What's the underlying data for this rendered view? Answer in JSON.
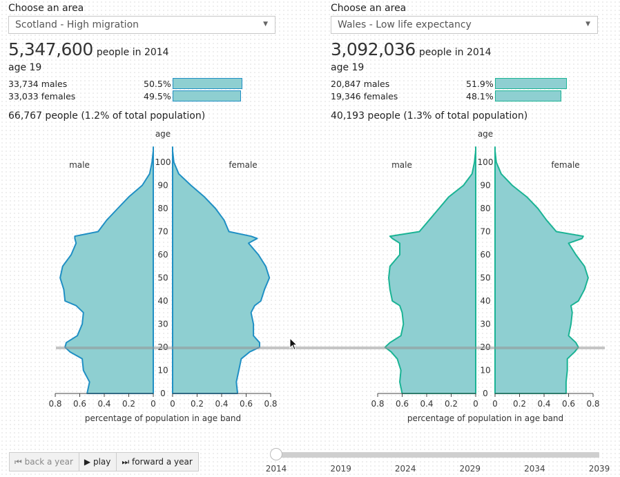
{
  "left": {
    "choose_label": "Choose an area",
    "area": "Scotland - High migration",
    "population": "5,347,600",
    "population_suffix": "people in 2014",
    "age_label": "age 19",
    "males": {
      "count": "33,734 males",
      "pct": "50.5%",
      "share": 0.505
    },
    "females": {
      "count": "33,033 females",
      "pct": "49.5%",
      "share": 0.495
    },
    "total": "66,767 people (1.2% of total population)",
    "color": "#1f8fc4"
  },
  "right": {
    "choose_label": "Choose an area",
    "area": "Wales - Low life expectancy",
    "population": "3,092,036",
    "population_suffix": "people in 2014",
    "age_label": "age 19",
    "males": {
      "count": "20,847 males",
      "pct": "51.9%",
      "share": 0.519
    },
    "females": {
      "count": "19,346 females",
      "pct": "48.1%",
      "share": 0.481
    },
    "total": "40,193 people (1.3% of total population)",
    "color": "#1ab394"
  },
  "colors": {
    "fill": "#8ecfd1",
    "highlight": "#9a9a9a"
  },
  "controls": {
    "back": "back a year",
    "play": "play",
    "forward": "forward a year"
  },
  "timeline": {
    "years": [
      "2014",
      "2019",
      "2024",
      "2029",
      "2034",
      "2039"
    ],
    "current": "2014"
  },
  "chart_data": [
    {
      "type": "area",
      "title": "Scotland - High migration",
      "ylabel": "age",
      "xlabel": "percentage of population in age band",
      "left_label": "male",
      "right_label": "female",
      "xlim": [
        0,
        0.8
      ],
      "x_ticks": [
        "0",
        "0.2",
        "0.4",
        "0.6",
        "0.8"
      ],
      "ylim": [
        0,
        105
      ],
      "y_ticks": [
        "0",
        "10",
        "20",
        "30",
        "40",
        "50",
        "60",
        "70",
        "80",
        "90",
        "100"
      ],
      "highlight_age": 19,
      "ages": [
        0,
        5,
        10,
        15,
        18,
        20,
        22,
        25,
        30,
        35,
        38,
        40,
        45,
        50,
        55,
        60,
        65,
        67,
        68,
        70,
        75,
        80,
        85,
        90,
        95,
        100,
        105
      ],
      "series": [
        {
          "name": "male",
          "values": [
            0.54,
            0.52,
            0.57,
            0.58,
            0.68,
            0.72,
            0.71,
            0.62,
            0.58,
            0.57,
            0.63,
            0.72,
            0.73,
            0.76,
            0.74,
            0.67,
            0.63,
            0.64,
            0.64,
            0.45,
            0.38,
            0.29,
            0.2,
            0.09,
            0.03,
            0.01,
            0
          ]
        },
        {
          "name": "female",
          "values": [
            0.53,
            0.52,
            0.54,
            0.56,
            0.63,
            0.71,
            0.71,
            0.66,
            0.66,
            0.64,
            0.67,
            0.72,
            0.75,
            0.79,
            0.76,
            0.7,
            0.62,
            0.69,
            0.64,
            0.46,
            0.42,
            0.35,
            0.26,
            0.15,
            0.05,
            0.01,
            0
          ]
        }
      ]
    },
    {
      "type": "area",
      "title": "Wales - Low life expectancy",
      "ylabel": "age",
      "xlabel": "percentage of population in age band",
      "left_label": "male",
      "right_label": "female",
      "xlim": [
        0,
        0.8
      ],
      "x_ticks": [
        "0",
        "0.2",
        "0.4",
        "0.6",
        "0.8"
      ],
      "ylim": [
        0,
        105
      ],
      "y_ticks": [
        "0",
        "10",
        "20",
        "30",
        "40",
        "50",
        "60",
        "70",
        "80",
        "90",
        "100"
      ],
      "highlight_age": 19,
      "ages": [
        0,
        5,
        10,
        15,
        18,
        20,
        22,
        25,
        30,
        35,
        38,
        40,
        45,
        50,
        55,
        60,
        65,
        67,
        68,
        70,
        75,
        80,
        85,
        90,
        95,
        100,
        105
      ],
      "series": [
        {
          "name": "male",
          "values": [
            0.6,
            0.62,
            0.61,
            0.64,
            0.69,
            0.74,
            0.7,
            0.61,
            0.59,
            0.6,
            0.62,
            0.68,
            0.7,
            0.71,
            0.7,
            0.62,
            0.62,
            0.68,
            0.7,
            0.46,
            0.38,
            0.3,
            0.22,
            0.1,
            0.03,
            0.01,
            0
          ]
        },
        {
          "name": "female",
          "values": [
            0.58,
            0.58,
            0.59,
            0.59,
            0.65,
            0.68,
            0.66,
            0.6,
            0.62,
            0.63,
            0.62,
            0.68,
            0.73,
            0.76,
            0.73,
            0.66,
            0.6,
            0.71,
            0.72,
            0.5,
            0.42,
            0.35,
            0.26,
            0.14,
            0.05,
            0.01,
            0
          ]
        }
      ]
    }
  ]
}
